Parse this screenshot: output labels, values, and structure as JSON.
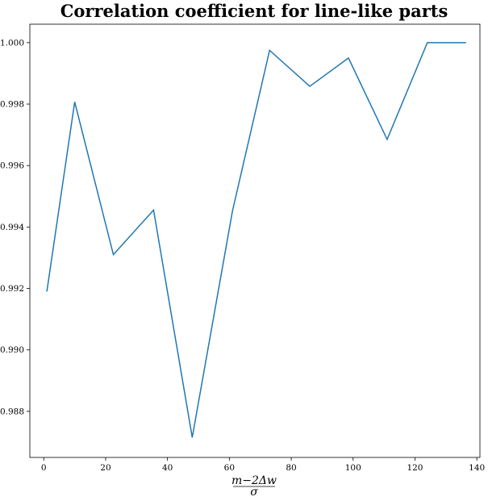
{
  "chart_data": {
    "type": "line",
    "title": "Correlation coefficient for line-like parts",
    "xlabel_numerator": "m−2Δw",
    "xlabel_denominator": "σ",
    "ylabel": "",
    "xlim": [
      -4.5,
      141
    ],
    "ylim": [
      0.9865,
      1.0006
    ],
    "x_ticks": [
      0,
      20,
      40,
      60,
      80,
      100,
      120,
      140
    ],
    "x_tick_labels": [
      "0",
      "20",
      "40",
      "60",
      "80",
      "100",
      "120",
      "140"
    ],
    "y_ticks": [
      0.988,
      0.99,
      0.992,
      0.994,
      0.996,
      0.998,
      1.0
    ],
    "y_tick_labels": [
      "0.988",
      "0.990",
      "0.992",
      "0.994",
      "0.996",
      "0.998",
      "1.000"
    ],
    "grid": false,
    "series": [
      {
        "color": "#1f77b4",
        "x": [
          1,
          10,
          22.5,
          35.5,
          48,
          61,
          73,
          86,
          98.5,
          111,
          124,
          136.5
        ],
        "y": [
          0.9919,
          0.99807,
          0.9931,
          0.99455,
          0.98715,
          0.99452,
          0.99975,
          0.99858,
          0.9995,
          0.99685,
          1.0,
          1.0
        ]
      }
    ]
  }
}
